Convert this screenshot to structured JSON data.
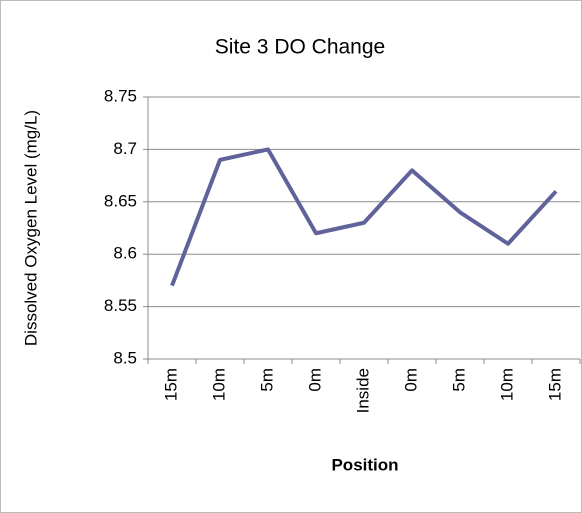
{
  "chart_data": {
    "type": "line",
    "title": "Site 3 DO Change",
    "x_label": "Position",
    "y_label": "Dissolved Oxygen Level (mg/L)",
    "categories": [
      "15m",
      "10m",
      "5m",
      "0m",
      "Inside",
      "0m",
      "5m",
      "10m",
      "15m"
    ],
    "values": [
      8.57,
      8.69,
      8.7,
      8.62,
      8.63,
      8.68,
      8.64,
      8.61,
      8.66
    ],
    "color": "#60639a",
    "ylim": [
      8.5,
      8.75
    ],
    "yticks": [
      8.5,
      8.55,
      8.6,
      8.65,
      8.7,
      8.75
    ],
    "grid": true
  }
}
